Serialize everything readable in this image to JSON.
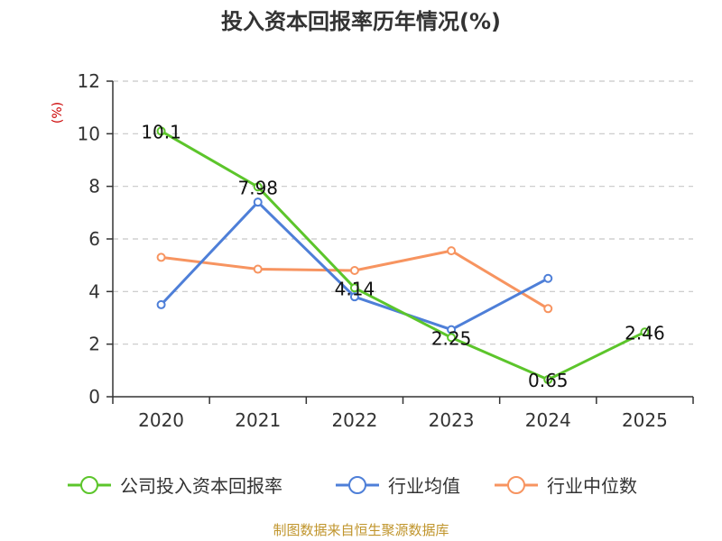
{
  "chart_data": {
    "type": "line",
    "title": "投入资本回报率历年情况(%)",
    "ylabel": "(%)",
    "xlabel": "",
    "categories": [
      "2020",
      "2021",
      "2022",
      "2023",
      "2024",
      "2025"
    ],
    "ylim": [
      0,
      12
    ],
    "yticks": [
      0,
      2,
      4,
      6,
      8,
      10,
      12
    ],
    "grid": true,
    "legend_position": "bottom",
    "series": [
      {
        "name": "公司投入资本回报率",
        "color": "#5cc52b",
        "values": [
          10.1,
          7.98,
          4.14,
          2.25,
          0.65,
          2.46
        ],
        "labels": [
          "10.1",
          "7.98",
          "4.14",
          "2.25",
          "0.65",
          "2.46"
        ]
      },
      {
        "name": "行业均值",
        "color": "#4e7fd8",
        "values": [
          3.5,
          7.4,
          3.8,
          2.55,
          4.5,
          null
        ]
      },
      {
        "name": "行业中位数",
        "color": "#f79460",
        "values": [
          5.3,
          4.85,
          4.8,
          5.55,
          3.35,
          null
        ]
      }
    ]
  },
  "source_text": "制图数据来自恒生聚源数据库",
  "colors": {
    "ylabel": "#cc0000",
    "source": "#c0952c",
    "grid": "#c8c8c8",
    "axis": "#333333"
  }
}
